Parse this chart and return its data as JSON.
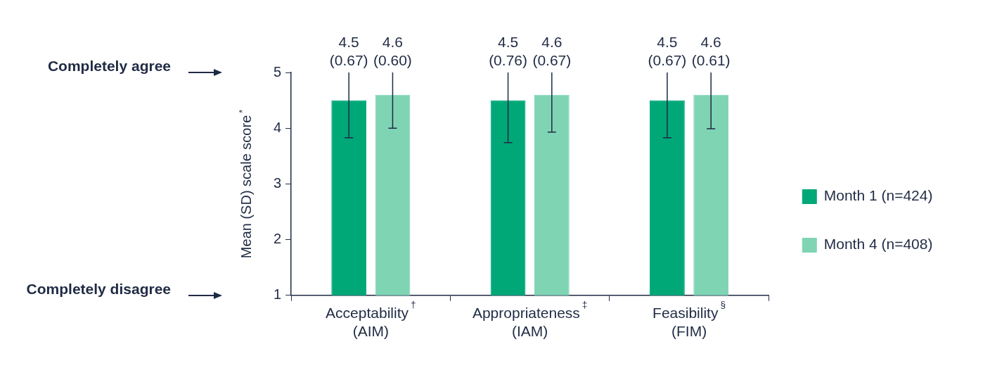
{
  "chart_data": {
    "type": "bar",
    "ylabel": "Mean (SD) scale score$^{*}$",
    "categories": [
      "Acceptability$^{†}$\n(AIM)",
      "Appropriateness$^{‡}$\n(IAM)",
      "Feasibility$^{§}$\n(FIM)"
    ],
    "series": [
      {
        "name": "Month 1 (n=424)",
        "color": "#00a878",
        "values": [
          4.5,
          4.5,
          4.5
        ],
        "errors": [
          [
            3.83,
            5
          ],
          [
            3.74,
            5
          ],
          [
            3.83,
            5
          ]
        ],
        "value_labels": [
          "4.5\n(0.67)",
          "4.5\n(0.76)",
          "4.5\n(0.67)"
        ]
      },
      {
        "name": "Month 4 (n=408)",
        "color": "#7fd4b4",
        "values": [
          4.6,
          4.6,
          4.6
        ],
        "errors": [
          [
            4.0,
            5
          ],
          [
            3.93,
            5
          ],
          [
            3.99,
            5
          ]
        ],
        "value_labels": [
          "4.6\n(0.60)",
          "4.6\n(0.67)",
          "4.6\n(0.61)"
        ]
      }
    ],
    "ylim": [
      1,
      5
    ],
    "yticks": [
      1,
      2,
      3,
      4,
      5
    ],
    "grid": false,
    "legend": "right",
    "annotations": [
      "Completely agree",
      "Completely disagree"
    ]
  }
}
